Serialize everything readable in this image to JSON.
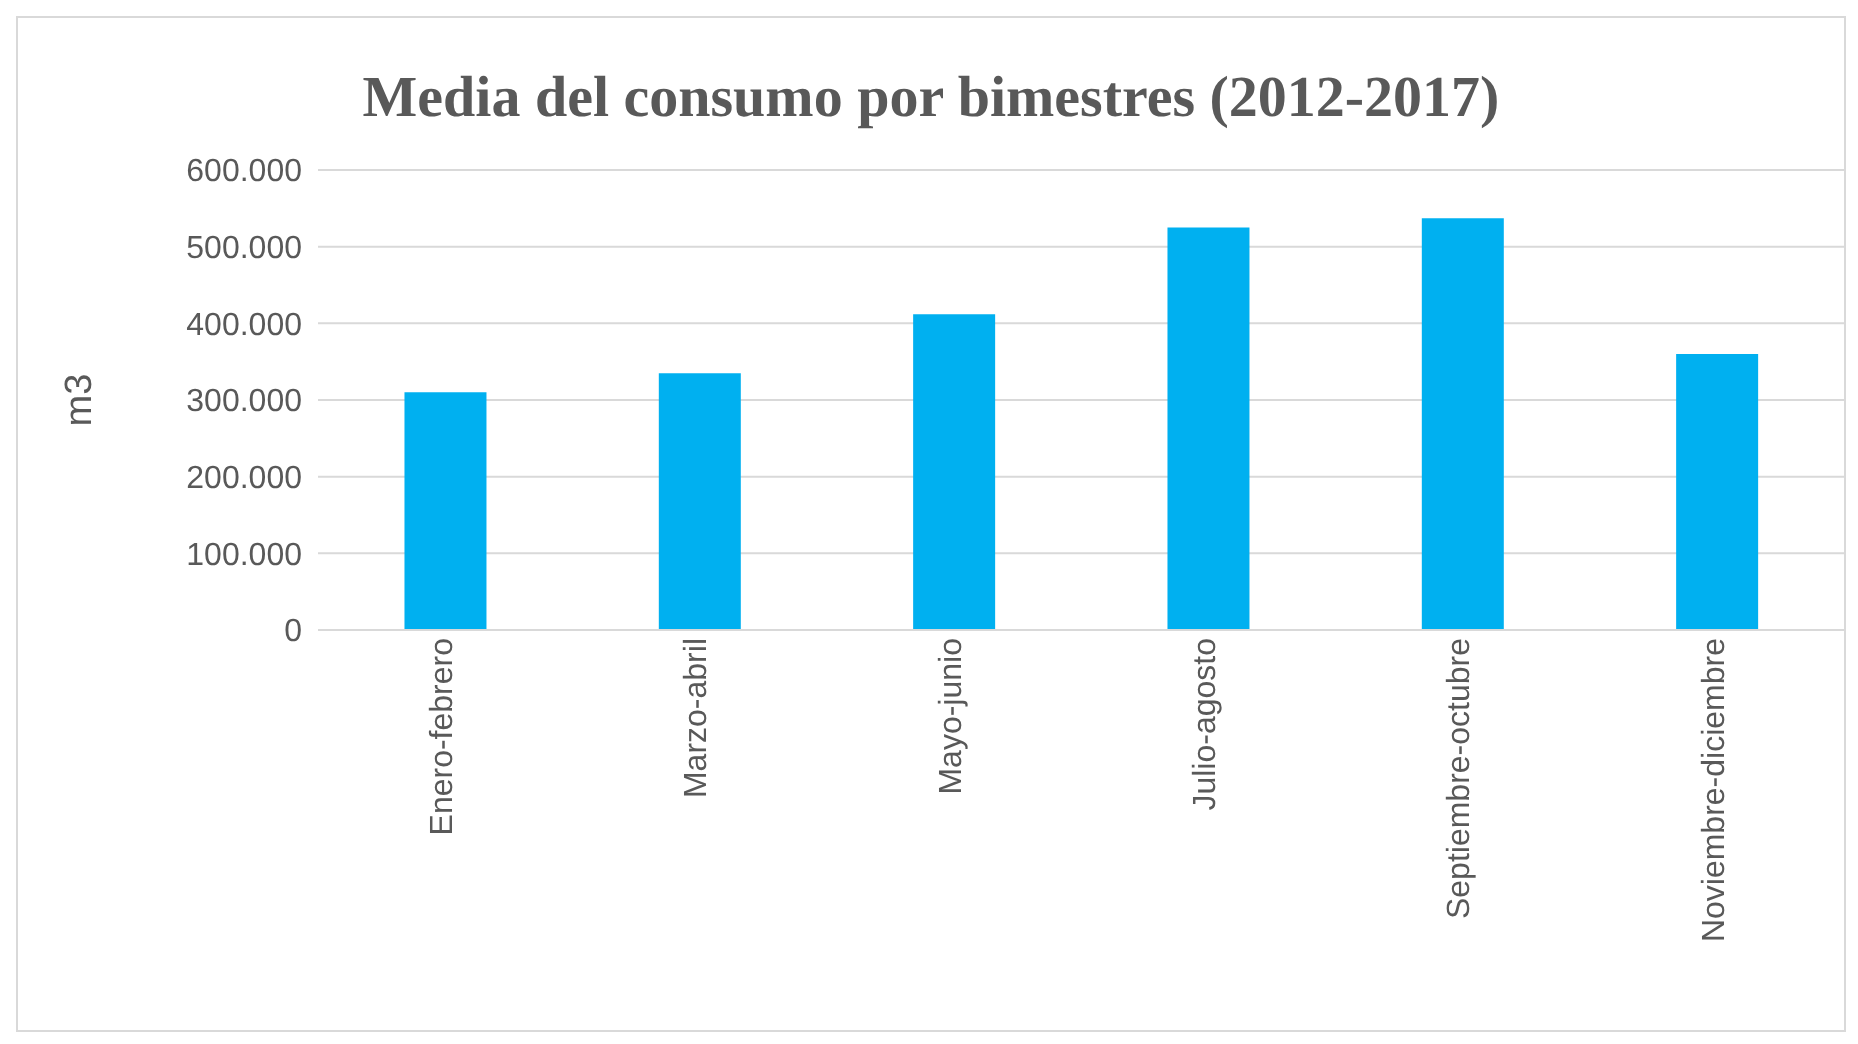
{
  "chart_data": {
    "type": "bar",
    "title": "Media del consumo por bimestres (2012-2017)",
    "ylabel": "m3",
    "categories": [
      "Enero-febrero",
      "Marzo-abril",
      "Mayo-junio",
      "Julio-agosto",
      "Septiembre-octubre",
      "Noviembre-diciembre"
    ],
    "values": [
      310000,
      335000,
      412000,
      525000,
      537000,
      360000
    ],
    "color": "#00b0f0",
    "ylim": [
      0,
      600000
    ],
    "yticks": [
      {
        "value": 0,
        "label": "0"
      },
      {
        "value": 100000,
        "label": "100.000"
      },
      {
        "value": 200000,
        "label": "200.000"
      },
      {
        "value": 300000,
        "label": "300.000"
      },
      {
        "value": 400000,
        "label": "400.000"
      },
      {
        "value": 500000,
        "label": "500.000"
      },
      {
        "value": 600000,
        "label": "600.000"
      }
    ],
    "grid": "y"
  }
}
